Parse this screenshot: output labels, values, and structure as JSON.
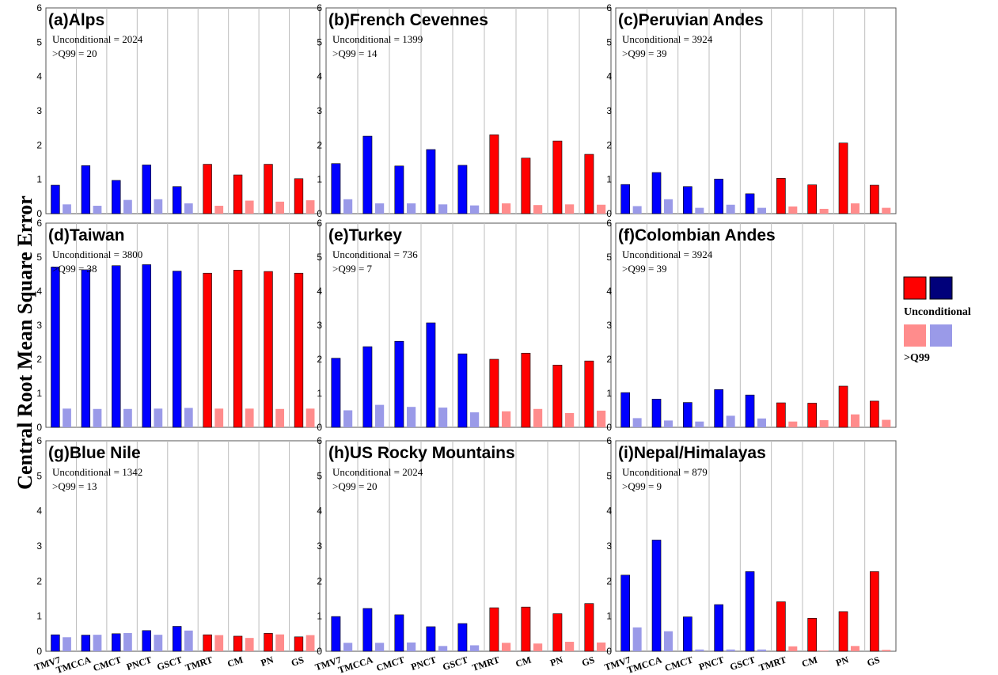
{
  "figure": {
    "ylabel": "Central Root Mean Square Error",
    "legend": {
      "unconditional_label": "Unconditional",
      "q99_label": ">Q99"
    },
    "colors": {
      "unconditional_red": "#ff0000",
      "unconditional_blue": "#0000ff",
      "q99_red": "#ff8c8c",
      "q99_blue": "#9a9ae8",
      "legend_blue_dark": "#00007a"
    }
  },
  "chart_data": [
    {
      "type": "bar",
      "panel": "(a)",
      "title": "Alps",
      "annotation_1": "Unconditional = 2024",
      "annotation_2": ">Q99 = 20",
      "categories": [
        "TMV7",
        "TMCCA",
        "CMCT",
        "PNCT",
        "GSCT",
        "TMRT",
        "CM",
        "PN",
        "GS"
      ],
      "ylim": [
        0,
        6
      ],
      "yticks": [
        "0",
        "1",
        "2",
        "3",
        "4",
        "5",
        "6"
      ],
      "series": [
        {
          "name": "Unconditional",
          "values": [
            0.83,
            1.4,
            0.97,
            1.42,
            0.79,
            1.44,
            1.13,
            1.44,
            1.02
          ]
        },
        {
          "name": ">Q99",
          "values": [
            0.27,
            0.23,
            0.4,
            0.42,
            0.3,
            0.23,
            0.38,
            0.35,
            0.39
          ]
        }
      ]
    },
    {
      "type": "bar",
      "panel": "(b)",
      "title": "French Cevennes",
      "annotation_1": "Unconditional = 1399",
      "annotation_2": ">Q99 = 14",
      "categories": [
        "TMV7",
        "TMCCA",
        "CMCT",
        "PNCT",
        "GSCT",
        "TMRT",
        "CM",
        "PN",
        "GS"
      ],
      "ylim": [
        0,
        6
      ],
      "yticks": [
        "0",
        "1",
        "2",
        "3",
        "4",
        "5",
        "6"
      ],
      "series": [
        {
          "name": "Unconditional",
          "values": [
            1.46,
            2.26,
            1.39,
            1.87,
            1.41,
            2.3,
            1.62,
            2.12,
            1.73
          ]
        },
        {
          "name": ">Q99",
          "values": [
            0.42,
            0.3,
            0.3,
            0.27,
            0.24,
            0.3,
            0.25,
            0.27,
            0.26
          ]
        }
      ]
    },
    {
      "type": "bar",
      "panel": "(c)",
      "title": "Peruvian Andes",
      "annotation_1": "Unconditional = 3924",
      "annotation_2": ">Q99 = 39",
      "categories": [
        "TMV7",
        "TMCCA",
        "CMCT",
        "PNCT",
        "GSCT",
        "TMRT",
        "CM",
        "PN",
        "GS"
      ],
      "ylim": [
        0,
        6
      ],
      "yticks": [
        "0",
        "1",
        "2",
        "3",
        "4",
        "5",
        "6"
      ],
      "series": [
        {
          "name": "Unconditional",
          "values": [
            0.85,
            1.2,
            0.79,
            1.01,
            0.58,
            1.03,
            0.84,
            2.06,
            0.83
          ]
        },
        {
          "name": ">Q99",
          "values": [
            0.22,
            0.42,
            0.17,
            0.26,
            0.17,
            0.21,
            0.14,
            0.3,
            0.17
          ]
        }
      ]
    },
    {
      "type": "bar",
      "panel": "(d)",
      "title": "Taiwan",
      "annotation_1": "Unconditional = 3800",
      "annotation_2": ">Q99 = 38",
      "categories": [
        "TMV7",
        "TMCCA",
        "CMCT",
        "PNCT",
        "GSCT",
        "TMRT",
        "CM",
        "PN",
        "GS"
      ],
      "ylim": [
        0,
        6
      ],
      "yticks": [
        "0",
        "1",
        "2",
        "3",
        "4",
        "5",
        "6"
      ],
      "series": [
        {
          "name": "Unconditional",
          "values": [
            4.71,
            4.63,
            4.75,
            4.78,
            4.59,
            4.53,
            4.62,
            4.58,
            4.53
          ]
        },
        {
          "name": ">Q99",
          "values": [
            0.55,
            0.54,
            0.54,
            0.55,
            0.57,
            0.55,
            0.55,
            0.54,
            0.55
          ]
        }
      ]
    },
    {
      "type": "bar",
      "panel": "(e)",
      "title": "Turkey",
      "annotation_1": "Unconditional = 736",
      "annotation_2": ">Q99 = 7",
      "categories": [
        "TMV7",
        "TMCCA",
        "CMCT",
        "PNCT",
        "GSCT",
        "TMRT",
        "CM",
        "PN",
        "GS"
      ],
      "ylim": [
        0,
        6
      ],
      "yticks": [
        "0",
        "1",
        "2",
        "3",
        "4",
        "5",
        "6"
      ],
      "series": [
        {
          "name": "Unconditional",
          "values": [
            2.03,
            2.37,
            2.53,
            3.07,
            2.16,
            2.0,
            2.18,
            1.83,
            1.95
          ]
        },
        {
          "name": ">Q99",
          "values": [
            0.5,
            0.66,
            0.6,
            0.58,
            0.44,
            0.47,
            0.54,
            0.42,
            0.49
          ]
        }
      ]
    },
    {
      "type": "bar",
      "panel": "(f)",
      "title": "Colombian Andes",
      "annotation_1": "Unconditional = 3924",
      "annotation_2": ">Q99 = 39",
      "categories": [
        "TMV7",
        "TMCCA",
        "CMCT",
        "PNCT",
        "GSCT",
        "TMRT",
        "CM",
        "PN",
        "GS"
      ],
      "ylim": [
        0,
        6
      ],
      "yticks": [
        "0",
        "1",
        "2",
        "3",
        "4",
        "5",
        "6"
      ],
      "series": [
        {
          "name": "Unconditional",
          "values": [
            1.02,
            0.83,
            0.73,
            1.11,
            0.95,
            0.72,
            0.71,
            1.21,
            0.77
          ]
        },
        {
          "name": ">Q99",
          "values": [
            0.27,
            0.2,
            0.17,
            0.34,
            0.26,
            0.17,
            0.21,
            0.38,
            0.22
          ]
        }
      ]
    },
    {
      "type": "bar",
      "panel": "(g)",
      "title": "Blue Nile",
      "annotation_1": "Unconditional = 1342",
      "annotation_2": ">Q99 = 13",
      "categories": [
        "TMV7",
        "TMCCA",
        "CMCT",
        "PNCT",
        "GSCT",
        "TMRT",
        "CM",
        "PN",
        "GS"
      ],
      "ylim": [
        0,
        6
      ],
      "yticks": [
        "0",
        "1",
        "2",
        "3",
        "4",
        "5",
        "6"
      ],
      "series": [
        {
          "name": "Unconditional",
          "values": [
            0.47,
            0.46,
            0.5,
            0.59,
            0.71,
            0.47,
            0.43,
            0.51,
            0.41
          ]
        },
        {
          "name": ">Q99",
          "values": [
            0.4,
            0.47,
            0.52,
            0.47,
            0.59,
            0.46,
            0.38,
            0.48,
            0.46
          ]
        }
      ]
    },
    {
      "type": "bar",
      "panel": "(h)",
      "title": "US Rocky Mountains",
      "annotation_1": "Unconditional = 2024",
      "annotation_2": ">Q99 = 20",
      "categories": [
        "TMV7",
        "TMCCA",
        "CMCT",
        "PNCT",
        "GSCT",
        "TMRT",
        "CM",
        "PN",
        "GS"
      ],
      "ylim": [
        0,
        6
      ],
      "yticks": [
        "0",
        "1",
        "2",
        "3",
        "4",
        "5",
        "6"
      ],
      "series": [
        {
          "name": "Unconditional",
          "values": [
            0.99,
            1.22,
            1.04,
            0.7,
            0.79,
            1.24,
            1.26,
            1.07,
            1.36
          ]
        },
        {
          "name": ">Q99",
          "values": [
            0.24,
            0.24,
            0.25,
            0.15,
            0.17,
            0.24,
            0.22,
            0.27,
            0.25
          ]
        }
      ]
    },
    {
      "type": "bar",
      "panel": "(i)",
      "title": "Nepal/Himalayas",
      "annotation_1": "Unconditional = 879",
      "annotation_2": ">Q99 = 9",
      "categories": [
        "TMV7",
        "TMCCA",
        "CMCT",
        "PNCT",
        "GSCT",
        "TMRT",
        "CM",
        "PN",
        "GS"
      ],
      "ylim": [
        0,
        6
      ],
      "yticks": [
        "0",
        "1",
        "2",
        "3",
        "4",
        "5",
        "6"
      ],
      "series": [
        {
          "name": "Unconditional",
          "values": [
            2.17,
            3.17,
            0.98,
            1.33,
            2.27,
            1.41,
            0.94,
            1.13,
            2.27
          ]
        },
        {
          "name": ">Q99",
          "values": [
            0.68,
            0.57,
            0.05,
            0.05,
            0.05,
            0.14,
            0.02,
            0.15,
            0.04
          ]
        }
      ]
    }
  ]
}
